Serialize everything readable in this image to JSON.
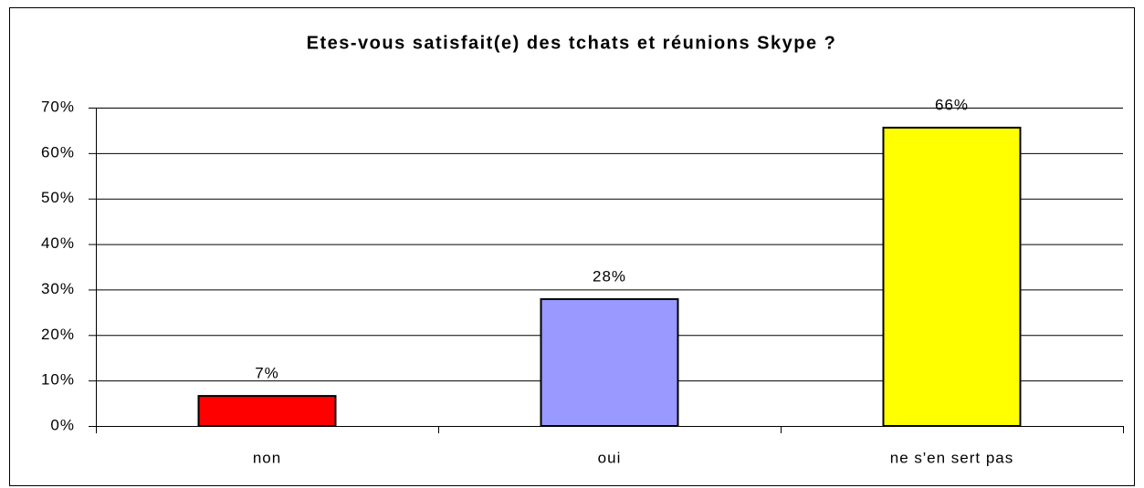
{
  "chart_data": {
    "type": "bar",
    "title": "Etes-vous satisfait(e) des tchats et réunions Skype ?",
    "categories": [
      "non",
      "oui",
      "ne s'en sert pas"
    ],
    "values": [
      6.6,
      27.9,
      65.6
    ],
    "value_labels": [
      "7%",
      "28%",
      "66%"
    ],
    "colors": [
      "#ff0000",
      "#9999ff",
      "#ffff00"
    ],
    "ylim": [
      0,
      70
    ],
    "yticks": [
      {
        "value": 0,
        "label": "0%"
      },
      {
        "value": 10,
        "label": "10%"
      },
      {
        "value": 20,
        "label": "20%"
      },
      {
        "value": 30,
        "label": "30%"
      },
      {
        "value": 40,
        "label": "40%"
      },
      {
        "value": 50,
        "label": "50%"
      },
      {
        "value": 60,
        "label": "60%"
      },
      {
        "value": 70,
        "label": "70%"
      }
    ],
    "grid": true
  }
}
